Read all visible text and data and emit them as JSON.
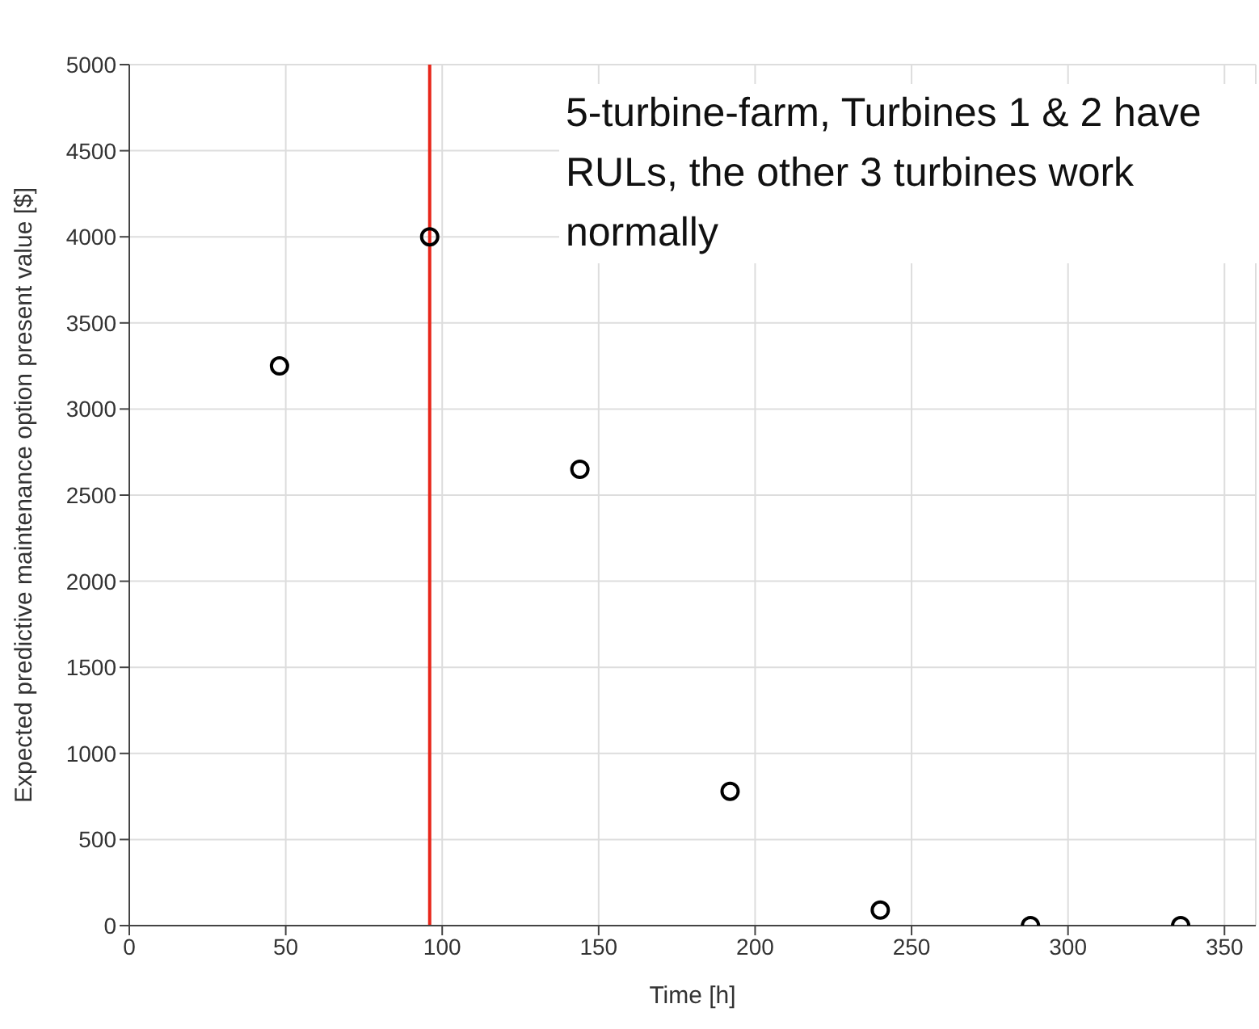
{
  "chart_data": {
    "type": "scatter",
    "xlabel": "Time [h]",
    "ylabel": "Expected predictive maintenance option present value [$]",
    "x": [
      48,
      96,
      144,
      192,
      240,
      288,
      336
    ],
    "series": [
      {
        "color": "#000000",
        "values": [
          3250,
          4000,
          2650,
          780,
          90,
          0,
          0
        ]
      }
    ],
    "xlim": [
      0,
      360
    ],
    "xticks": [
      0,
      50,
      100,
      150,
      200,
      250,
      300,
      350
    ],
    "ylim": [
      0,
      5000
    ],
    "yticks": [
      0,
      500,
      1000,
      1500,
      2000,
      2500,
      3000,
      3500,
      4000,
      4500,
      5000
    ],
    "grid": true,
    "marker": "circle",
    "ref_lines": [
      {
        "axis": "x",
        "value": 96,
        "color": "#e8261a"
      }
    ],
    "annotations": [
      "5-turbine-farm, Turbines 1 & 2 have RULs, the other 3 turbines work normally"
    ]
  }
}
